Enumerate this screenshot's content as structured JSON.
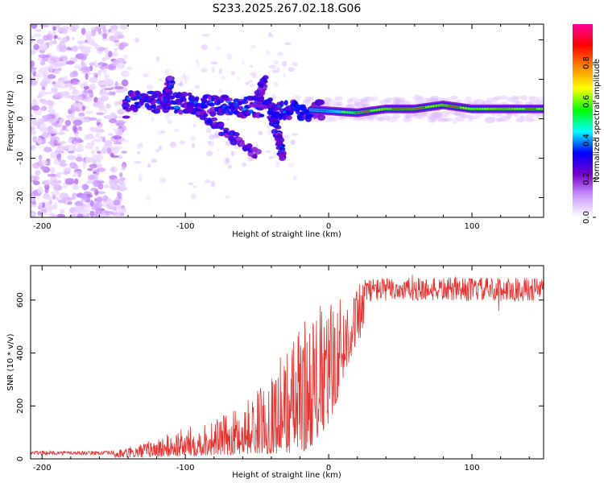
{
  "title": "S233.2025.267.02.18.G06",
  "colors": {
    "snr_line": "#e8312f",
    "axis": "#000000"
  },
  "chart_data": [
    {
      "type": "heatmap",
      "name": "spectrogram",
      "xlabel": "Height of straight line (km)",
      "ylabel": "Frequency (Hz)",
      "xlim": [
        -208,
        150
      ],
      "ylim": [
        -25,
        24
      ],
      "x_ticks": [
        -200,
        -100,
        0,
        100
      ],
      "x_tick_labels": [
        "-200",
        "-100",
        "0",
        "100"
      ],
      "y_ticks": [
        -20,
        -10,
        0,
        10,
        20
      ],
      "y_tick_labels": [
        "-20",
        "-10",
        "0",
        "10",
        "20"
      ],
      "ridge": [
        {
          "x": -140,
          "y": 4
        },
        {
          "x": -120,
          "y": 4.5
        },
        {
          "x": -100,
          "y": 4
        },
        {
          "x": -80,
          "y": 3.5
        },
        {
          "x": -60,
          "y": 3
        },
        {
          "x": -40,
          "y": 2.5
        },
        {
          "x": -20,
          "y": 2.5
        },
        {
          "x": 0,
          "y": 2
        },
        {
          "x": 20,
          "y": 1.5
        },
        {
          "x": 40,
          "y": 2.5
        },
        {
          "x": 60,
          "y": 2.5
        },
        {
          "x": 80,
          "y": 3.5
        },
        {
          "x": 100,
          "y": 2.5
        },
        {
          "x": 120,
          "y": 2.5
        },
        {
          "x": 150,
          "y": 2.5
        }
      ],
      "branches": [
        {
          "from": {
            "x": -100,
            "y": 4
          },
          "to": {
            "x": -50,
            "y": -9
          }
        },
        {
          "from": {
            "x": -40,
            "y": 3
          },
          "to": {
            "x": -32,
            "y": -10
          }
        },
        {
          "from": {
            "x": -115,
            "y": 4
          },
          "to": {
            "x": -110,
            "y": 10
          }
        },
        {
          "from": {
            "x": -50,
            "y": 4
          },
          "to": {
            "x": -45,
            "y": 10
          }
        }
      ],
      "colorbar": {
        "label": "Normalized spectral amplitude",
        "range": [
          0.0,
          1.0
        ],
        "ticks": [
          0.0,
          0.2,
          0.4,
          0.6,
          0.8
        ],
        "tick_labels": [
          "0.0",
          "0.2",
          "0.4",
          "0.6",
          "0.8"
        ],
        "stops": [
          "#ffffff",
          "#cc99ff",
          "#7700cc",
          "#0000ff",
          "#00ffff",
          "#00ff00",
          "#ffff00",
          "#ff8800",
          "#ff0000",
          "#ff0099"
        ]
      }
    },
    {
      "type": "line",
      "name": "snr",
      "xlabel": "Height of straight line (km)",
      "ylabel": "SNR (10 * v/v)",
      "xlim": [
        -208,
        150
      ],
      "ylim": [
        0,
        730
      ],
      "x_ticks": [
        -200,
        -100,
        0,
        100
      ],
      "x_tick_labels": [
        "-200",
        "-100",
        "0",
        "100"
      ],
      "y_ticks": [
        0,
        200,
        400,
        600
      ],
      "y_tick_labels": [
        "0",
        "200",
        "400",
        "600"
      ],
      "envelope": [
        {
          "x": -208,
          "lo": 5,
          "hi": 30
        },
        {
          "x": -150,
          "lo": 5,
          "hi": 30
        },
        {
          "x": -130,
          "lo": 5,
          "hi": 60
        },
        {
          "x": -100,
          "lo": 10,
          "hi": 120
        },
        {
          "x": -70,
          "lo": 15,
          "hi": 170
        },
        {
          "x": -50,
          "lo": 20,
          "hi": 260
        },
        {
          "x": -30,
          "lo": 20,
          "hi": 420
        },
        {
          "x": -15,
          "lo": 30,
          "hi": 560
        },
        {
          "x": 0,
          "lo": 120,
          "hi": 600
        },
        {
          "x": 15,
          "lo": 380,
          "hi": 640
        },
        {
          "x": 30,
          "lo": 540,
          "hi": 690
        },
        {
          "x": 60,
          "lo": 560,
          "hi": 700
        },
        {
          "x": 100,
          "lo": 560,
          "hi": 700
        },
        {
          "x": 150,
          "lo": 560,
          "hi": 700
        }
      ]
    }
  ]
}
